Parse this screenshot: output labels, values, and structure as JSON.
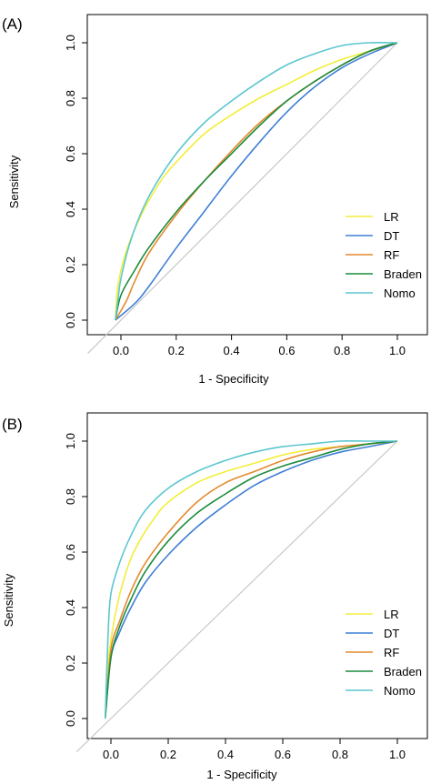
{
  "chart_data": [
    {
      "type": "line",
      "panel_label": "(A)",
      "xlabel": "1 - Specificity",
      "ylabel": "Sensitivity",
      "xlim": [
        -0.1,
        1.1
      ],
      "ylim": [
        0.0,
        1.0
      ],
      "xticks": [
        "0.0",
        "0.2",
        "0.4",
        "0.6",
        "0.8",
        "1.0"
      ],
      "yticks": [
        "0.0",
        "0.2",
        "0.4",
        "0.6",
        "0.8",
        "1.0"
      ],
      "grid": false,
      "diagonal_reference": true,
      "legend_position": "bottom-right",
      "series": [
        {
          "name": "LR",
          "color": "#f2ee3a",
          "x": [
            -0.02,
            -0.01,
            0.02,
            0.06,
            0.1,
            0.15,
            0.2,
            0.3,
            0.4,
            0.5,
            0.6,
            0.7,
            0.8,
            0.9,
            1.0
          ],
          "y": [
            0.0,
            0.13,
            0.25,
            0.35,
            0.43,
            0.51,
            0.57,
            0.67,
            0.74,
            0.8,
            0.85,
            0.9,
            0.94,
            0.97,
            1.0
          ]
        },
        {
          "name": "DT",
          "color": "#3f7fd6",
          "x": [
            -0.02,
            0.05,
            0.1,
            0.2,
            0.3,
            0.4,
            0.5,
            0.6,
            0.7,
            0.8,
            0.9,
            1.0
          ],
          "y": [
            0.0,
            0.06,
            0.12,
            0.26,
            0.39,
            0.52,
            0.64,
            0.75,
            0.84,
            0.91,
            0.96,
            1.0
          ]
        },
        {
          "name": "RF",
          "color": "#e38a2f",
          "x": [
            -0.02,
            0.02,
            0.05,
            0.1,
            0.2,
            0.3,
            0.4,
            0.5,
            0.6,
            0.7,
            0.8,
            0.9,
            1.0
          ],
          "y": [
            0.0,
            0.07,
            0.14,
            0.24,
            0.38,
            0.5,
            0.61,
            0.71,
            0.79,
            0.86,
            0.92,
            0.97,
            1.0
          ]
        },
        {
          "name": "Braden",
          "color": "#1c8c3c",
          "x": [
            -0.02,
            0.0,
            0.05,
            0.1,
            0.2,
            0.3,
            0.4,
            0.5,
            0.6,
            0.7,
            0.8,
            0.9,
            1.0
          ],
          "y": [
            0.0,
            0.09,
            0.18,
            0.26,
            0.39,
            0.5,
            0.6,
            0.7,
            0.79,
            0.86,
            0.92,
            0.97,
            1.0
          ]
        },
        {
          "name": "Nomo",
          "color": "#5cc6d0",
          "x": [
            -0.02,
            -0.01,
            0.0,
            0.03,
            0.07,
            0.12,
            0.2,
            0.3,
            0.4,
            0.5,
            0.6,
            0.7,
            0.8,
            0.9,
            1.0
          ],
          "y": [
            0.0,
            0.08,
            0.15,
            0.27,
            0.38,
            0.48,
            0.6,
            0.71,
            0.79,
            0.86,
            0.92,
            0.96,
            0.99,
            1.0,
            1.0
          ]
        }
      ]
    },
    {
      "type": "line",
      "panel_label": "(B)",
      "xlabel": "1 - Specificity",
      "ylabel": "Sensitivity",
      "xlim": [
        -0.1,
        1.1
      ],
      "ylim": [
        0.0,
        1.0
      ],
      "xticks": [
        "0.0",
        "0.2",
        "0.4",
        "0.6",
        "0.8",
        "1.0"
      ],
      "yticks": [
        "0.0",
        "0.2",
        "0.4",
        "0.6",
        "0.8",
        "1.0"
      ],
      "grid": false,
      "diagonal_reference": true,
      "legend_position": "bottom-right",
      "series": [
        {
          "name": "LR",
          "color": "#f2ee3a",
          "x": [
            -0.02,
            -0.01,
            0.02,
            0.06,
            0.1,
            0.15,
            0.2,
            0.3,
            0.4,
            0.5,
            0.6,
            0.7,
            0.8,
            0.9,
            1.0
          ],
          "y": [
            0.0,
            0.2,
            0.4,
            0.55,
            0.64,
            0.72,
            0.78,
            0.85,
            0.89,
            0.92,
            0.95,
            0.97,
            0.98,
            0.99,
            1.0
          ]
        },
        {
          "name": "DT",
          "color": "#3f7fd6",
          "x": [
            -0.02,
            0.0,
            0.03,
            0.07,
            0.12,
            0.2,
            0.3,
            0.4,
            0.5,
            0.6,
            0.7,
            0.8,
            0.9,
            1.0
          ],
          "y": [
            0.0,
            0.22,
            0.31,
            0.4,
            0.49,
            0.59,
            0.69,
            0.77,
            0.84,
            0.89,
            0.93,
            0.96,
            0.98,
            1.0
          ]
        },
        {
          "name": "RF",
          "color": "#e38a2f",
          "x": [
            -0.02,
            0.0,
            0.03,
            0.07,
            0.12,
            0.2,
            0.3,
            0.4,
            0.5,
            0.6,
            0.7,
            0.8,
            0.9,
            1.0
          ],
          "y": [
            0.0,
            0.25,
            0.35,
            0.46,
            0.56,
            0.67,
            0.78,
            0.85,
            0.89,
            0.93,
            0.96,
            0.98,
            0.99,
            1.0
          ]
        },
        {
          "name": "Braden",
          "color": "#1c8c3c",
          "x": [
            -0.02,
            0.0,
            0.03,
            0.07,
            0.12,
            0.2,
            0.3,
            0.4,
            0.5,
            0.6,
            0.7,
            0.8,
            0.9,
            1.0
          ],
          "y": [
            0.0,
            0.22,
            0.33,
            0.43,
            0.53,
            0.64,
            0.74,
            0.81,
            0.87,
            0.91,
            0.94,
            0.97,
            0.99,
            1.0
          ]
        },
        {
          "name": "Nomo",
          "color": "#5cc6d0",
          "x": [
            -0.02,
            -0.01,
            0.0,
            0.03,
            0.07,
            0.12,
            0.2,
            0.3,
            0.4,
            0.5,
            0.6,
            0.7,
            0.8,
            0.9,
            1.0
          ],
          "y": [
            0.0,
            0.3,
            0.45,
            0.56,
            0.66,
            0.75,
            0.83,
            0.89,
            0.93,
            0.96,
            0.98,
            0.99,
            1.0,
            1.0,
            1.0
          ]
        }
      ]
    }
  ]
}
